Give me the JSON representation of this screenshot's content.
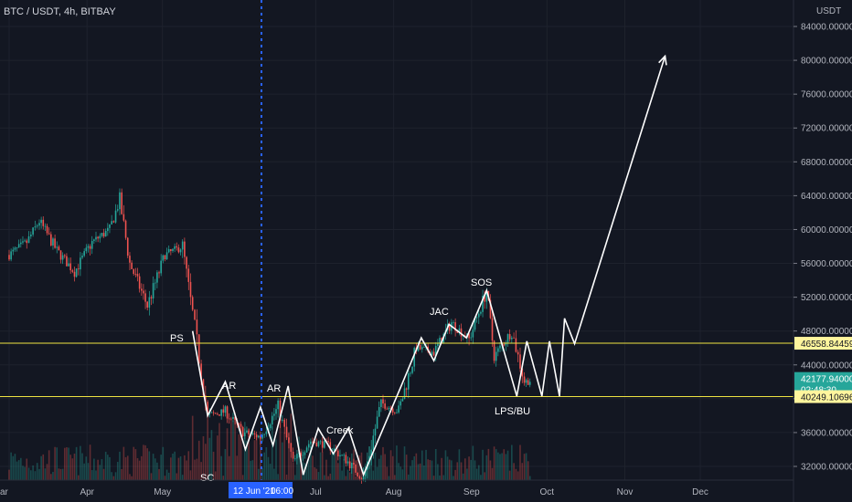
{
  "header": {
    "symbol": "BTC / USDT, 4h, BITBAY"
  },
  "colors": {
    "background": "#131722",
    "grid": "#1e222d",
    "up": "#26a69a",
    "down": "#ef5350",
    "level_line": "#f0e442",
    "path": "#ffffff",
    "crosshair": "#2962ff",
    "price_badge": "#26a69a"
  },
  "chart_data": {
    "type": "candlestick",
    "title": "BTC / USDT, 4h, BITBAY",
    "y_unit": "USDT",
    "ylim": [
      30000,
      86000
    ],
    "y_ticks": [
      "32000.000000",
      "36000.000000",
      "40000.000000",
      "44000.000000",
      "48000.000000",
      "52000.000000",
      "56000.000000",
      "60000.000000",
      "64000.000000",
      "68000.000000",
      "72000.000000",
      "76000.000000",
      "80000.000000",
      "84000.000000"
    ],
    "x_ticks": [
      "ar",
      "Apr",
      "May",
      "Jul",
      "Aug",
      "Sep",
      "Oct",
      "Nov",
      "Dec"
    ],
    "crosshair": {
      "date_label": "12 Jun '21",
      "time_label": "06:00"
    },
    "price_markers": [
      {
        "label": "46558.844596",
        "value": 46558.844596
      },
      {
        "label": "42177.940000",
        "value": 42177.94,
        "sublabel": "02:48:30"
      },
      {
        "label": "40249.106967",
        "value": 40249.106967
      }
    ],
    "horizontal_levels": [
      46558.844596,
      40249.106967
    ],
    "annotations": [
      "PS",
      "AR",
      "SC",
      "AR",
      "Creek",
      "JAC",
      "SOS",
      "LPS/BU"
    ],
    "candles": [
      {
        "date": "2021-03-01",
        "close": 57000
      },
      {
        "date": "2021-03-08",
        "close": 58500
      },
      {
        "date": "2021-03-13",
        "close": 61000
      },
      {
        "date": "2021-03-20",
        "close": 57500
      },
      {
        "date": "2021-03-27",
        "close": 55000
      },
      {
        "date": "2021-04-03",
        "close": 58500
      },
      {
        "date": "2021-04-10",
        "close": 60000
      },
      {
        "date": "2021-04-14",
        "close": 63500
      },
      {
        "date": "2021-04-18",
        "close": 56000
      },
      {
        "date": "2021-04-25",
        "close": 51000
      },
      {
        "date": "2021-05-02",
        "close": 57000
      },
      {
        "date": "2021-05-09",
        "close": 58000
      },
      {
        "date": "2021-05-13",
        "close": 50000
      },
      {
        "date": "2021-05-19",
        "close": 38000
      },
      {
        "date": "2021-05-26",
        "close": 38500
      },
      {
        "date": "2021-06-02",
        "close": 36000
      },
      {
        "date": "2021-06-09",
        "close": 35500
      },
      {
        "date": "2021-06-16",
        "close": 39000
      },
      {
        "date": "2021-06-22",
        "close": 32500
      },
      {
        "date": "2021-06-29",
        "close": 35000
      },
      {
        "date": "2021-07-06",
        "close": 34500
      },
      {
        "date": "2021-07-13",
        "close": 32800
      },
      {
        "date": "2021-07-20",
        "close": 30500
      },
      {
        "date": "2021-07-27",
        "close": 39500
      },
      {
        "date": "2021-08-03",
        "close": 38500
      },
      {
        "date": "2021-08-10",
        "close": 46000
      },
      {
        "date": "2021-08-17",
        "close": 45500
      },
      {
        "date": "2021-08-24",
        "close": 49000
      },
      {
        "date": "2021-08-31",
        "close": 47000
      },
      {
        "date": "2021-09-07",
        "close": 52800
      },
      {
        "date": "2021-09-10",
        "close": 45000
      },
      {
        "date": "2021-09-17",
        "close": 48000
      },
      {
        "date": "2021-09-22",
        "close": 42000
      },
      {
        "date": "2021-09-25",
        "close": 42177
      }
    ],
    "projection_path": [
      {
        "date": "2021-05-13",
        "price": 48000
      },
      {
        "date": "2021-05-19",
        "price": 38000
      },
      {
        "date": "2021-05-26",
        "price": 42000
      },
      {
        "date": "2021-06-03",
        "price": 34000
      },
      {
        "date": "2021-06-09",
        "price": 39000
      },
      {
        "date": "2021-06-14",
        "price": 34500
      },
      {
        "date": "2021-06-20",
        "price": 41500
      },
      {
        "date": "2021-06-26",
        "price": 31000
      },
      {
        "date": "2021-07-02",
        "price": 36500
      },
      {
        "date": "2021-07-08",
        "price": 33500
      },
      {
        "date": "2021-07-14",
        "price": 36500
      },
      {
        "date": "2021-07-20",
        "price": 31000
      },
      {
        "date": "2021-08-04",
        "price": 41500
      },
      {
        "date": "2021-08-12",
        "price": 47200
      },
      {
        "date": "2021-08-17",
        "price": 44500
      },
      {
        "date": "2021-08-23",
        "price": 48800
      },
      {
        "date": "2021-08-30",
        "price": 47200
      },
      {
        "date": "2021-09-07",
        "price": 52800
      },
      {
        "date": "2021-09-19",
        "price": 40300
      },
      {
        "date": "2021-09-23",
        "price": 46800
      },
      {
        "date": "2021-09-29",
        "price": 40300
      },
      {
        "date": "2021-10-02",
        "price": 46800
      },
      {
        "date": "2021-10-06",
        "price": 40300
      },
      {
        "date": "2021-10-08",
        "price": 49500
      },
      {
        "date": "2021-10-12",
        "price": 46500
      },
      {
        "date": "2021-11-17",
        "price": 80500
      }
    ]
  }
}
